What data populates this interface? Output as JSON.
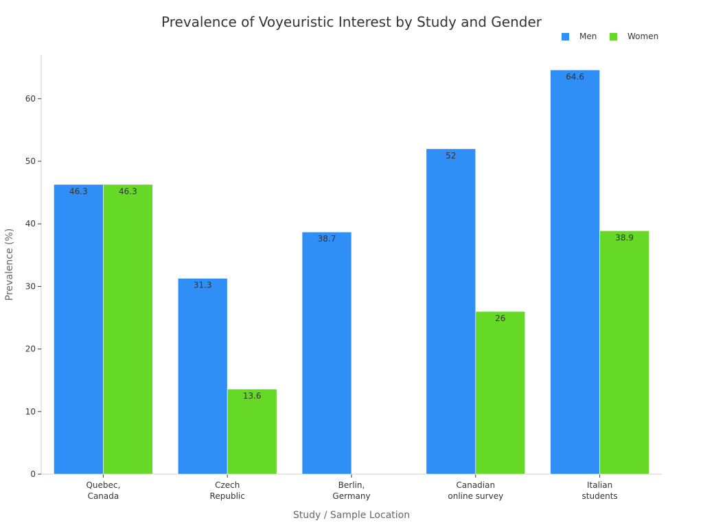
{
  "chart_data": {
    "type": "bar",
    "title": "Prevalence of Voyeuristic Interest by Study and Gender",
    "xlabel": "Study / Sample Location",
    "ylabel": "Prevalence (%)",
    "categories": [
      "Quebec,\nCanada",
      "Czech\nRepublic",
      "Berlin,\nGermany",
      "Canadian\nonline survey",
      "Italian\nstudents"
    ],
    "series": [
      {
        "name": "Men",
        "color": "#2f8ff7",
        "values": [
          46.3,
          31.3,
          38.7,
          52,
          64.6
        ]
      },
      {
        "name": "Women",
        "color": "#66d926",
        "values": [
          46.3,
          13.6,
          null,
          26,
          38.9
        ]
      }
    ],
    "ylim": [
      0,
      67
    ],
    "yticks": [
      0,
      10,
      20,
      30,
      40,
      50,
      60
    ],
    "grid": false,
    "legend_position": "top-right",
    "data_labels": true
  }
}
